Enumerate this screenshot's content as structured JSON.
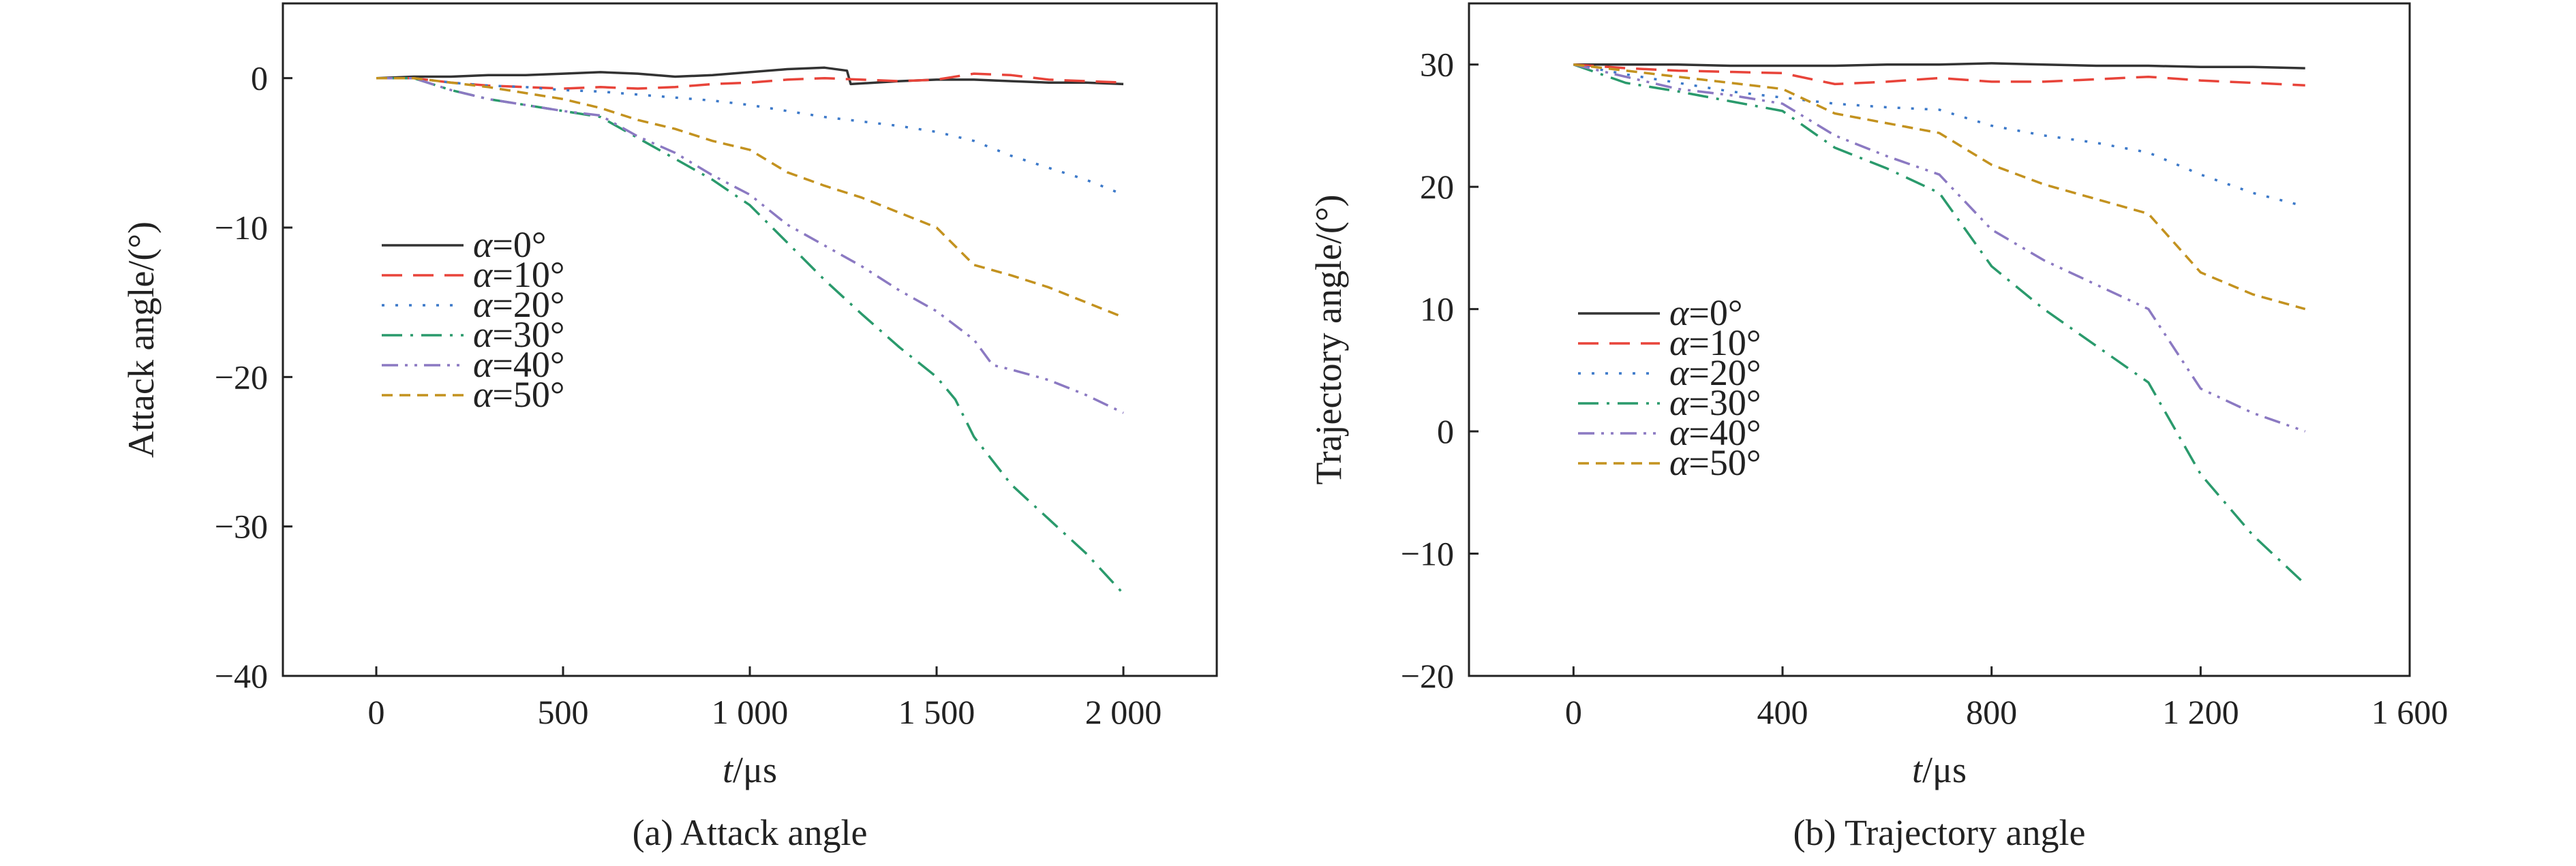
{
  "chart_data": [
    {
      "type": "line",
      "caption": "(a) Attack angle",
      "xlabel_italic": "t",
      "xlabel_unit": "/μs",
      "ylabel": "Attack angle/(°)",
      "xlim": [
        -250,
        2250
      ],
      "ylim": [
        -40,
        5
      ],
      "xticks": [
        0,
        500,
        1000,
        1500,
        2000
      ],
      "xtick_labels": [
        "0",
        "500",
        "1 000",
        "1 500",
        "2 000"
      ],
      "yticks": [
        0,
        -10,
        -20,
        -30,
        -40
      ],
      "ytick_labels": [
        "0",
        "−10",
        "−20",
        "−30",
        "−40"
      ],
      "legend_position": "middle-left",
      "series": [
        {
          "name_italic": "α",
          "name_rest": "=0°",
          "color": "#333333",
          "dash": "none",
          "x": [
            0,
            100,
            200,
            300,
            400,
            500,
            600,
            700,
            800,
            900,
            1000,
            1100,
            1200,
            1260,
            1270,
            1400,
            1500,
            1600,
            1700,
            1800,
            1900,
            2000
          ],
          "y": [
            0,
            0.1,
            0.1,
            0.2,
            0.2,
            0.3,
            0.4,
            0.3,
            0.1,
            0.2,
            0.4,
            0.6,
            0.7,
            0.5,
            -0.4,
            -0.2,
            -0.1,
            -0.1,
            -0.2,
            -0.3,
            -0.3,
            -0.4
          ]
        },
        {
          "name_italic": "α",
          "name_rest": "=10°",
          "color": "#e8443a",
          "dash": "30 16",
          "x": [
            0,
            100,
            200,
            300,
            400,
            500,
            600,
            700,
            800,
            900,
            1000,
            1100,
            1200,
            1300,
            1400,
            1500,
            1600,
            1700,
            1800,
            1900,
            2000
          ],
          "y": [
            0,
            0,
            -0.3,
            -0.5,
            -0.6,
            -0.7,
            -0.6,
            -0.7,
            -0.6,
            -0.4,
            -0.3,
            -0.1,
            0,
            -0.1,
            -0.2,
            -0.1,
            0.3,
            0.2,
            -0.1,
            -0.2,
            -0.3
          ]
        },
        {
          "name_italic": "α",
          "name_rest": "=20°",
          "color": "#3c79c9",
          "dash": "4 16",
          "x": [
            0,
            100,
            200,
            300,
            400,
            500,
            600,
            700,
            800,
            900,
            1000,
            1100,
            1200,
            1300,
            1400,
            1500,
            1600,
            1700,
            1800,
            1900,
            2000
          ],
          "y": [
            0,
            0,
            -0.3,
            -0.5,
            -0.6,
            -0.8,
            -0.9,
            -1.1,
            -1.3,
            -1.5,
            -1.8,
            -2.2,
            -2.6,
            -2.9,
            -3.2,
            -3.6,
            -4.2,
            -5.2,
            -6.0,
            -6.8,
            -7.8
          ]
        },
        {
          "name_italic": "α",
          "name_rest": "=30°",
          "color": "#2a9a6c",
          "dash": "30 12 4 12",
          "x": [
            0,
            100,
            200,
            300,
            400,
            500,
            600,
            700,
            800,
            900,
            1000,
            1100,
            1200,
            1300,
            1400,
            1500,
            1550,
            1600,
            1700,
            1800,
            1900,
            2000
          ],
          "y": [
            0,
            0,
            -0.8,
            -1.4,
            -1.8,
            -2.2,
            -2.6,
            -4.0,
            -5.4,
            -6.8,
            -8.5,
            -11,
            -13.5,
            -15.8,
            -18,
            -20,
            -21.5,
            -24,
            -27.2,
            -29.5,
            -31.8,
            -34.5
          ]
        },
        {
          "name_italic": "α",
          "name_rest": "=40°",
          "color": "#8b79c2",
          "dash": "24 10 4 10 4 10",
          "x": [
            0,
            100,
            200,
            300,
            400,
            500,
            600,
            700,
            800,
            900,
            1000,
            1100,
            1200,
            1300,
            1400,
            1500,
            1600,
            1650,
            1700,
            1800,
            1900,
            2000
          ],
          "y": [
            0,
            0,
            -0.8,
            -1.4,
            -1.8,
            -2.2,
            -2.5,
            -3.9,
            -5,
            -6.5,
            -7.8,
            -9.8,
            -11.2,
            -12.6,
            -14.2,
            -15.6,
            -17.5,
            -19.2,
            -19.5,
            -20.2,
            -21.2,
            -22.4
          ]
        },
        {
          "name_italic": "α",
          "name_rest": "=50°",
          "color": "#c3921f",
          "dash": "16 10",
          "x": [
            0,
            100,
            200,
            300,
            400,
            500,
            600,
            700,
            800,
            900,
            1000,
            1100,
            1200,
            1300,
            1400,
            1500,
            1600,
            1700,
            1800,
            1900,
            2000
          ],
          "y": [
            0,
            0,
            -0.3,
            -0.6,
            -1,
            -1.4,
            -2,
            -2.8,
            -3.4,
            -4.2,
            -4.8,
            -6.3,
            -7.2,
            -8.0,
            -9.0,
            -10.0,
            -12.5,
            -13.2,
            -14.0,
            -15.0,
            -16.0
          ]
        }
      ]
    },
    {
      "type": "line",
      "caption": "(b) Trajectory angle",
      "xlabel_italic": "t",
      "xlabel_unit": "/μs",
      "ylabel": "Trajectory angle/(°)",
      "xlim": [
        -200,
        1600
      ],
      "ylim": [
        -20,
        35
      ],
      "xticks": [
        0,
        400,
        800,
        1200,
        1600
      ],
      "xtick_labels": [
        "0",
        "400",
        "800",
        "1 200",
        "1 600"
      ],
      "yticks": [
        30,
        20,
        10,
        0,
        -10,
        -20
      ],
      "ytick_labels": [
        "30",
        "20",
        "10",
        "0",
        "−10",
        "−20"
      ],
      "legend_position": "middle-left",
      "series": [
        {
          "name_italic": "α",
          "name_rest": "=0°",
          "color": "#333333",
          "dash": "none",
          "x": [
            0,
            100,
            200,
            300,
            400,
            500,
            600,
            700,
            800,
            900,
            1000,
            1100,
            1200,
            1300,
            1400
          ],
          "y": [
            30,
            30,
            30,
            29.9,
            29.9,
            29.9,
            30,
            30,
            30.1,
            30,
            29.9,
            29.9,
            29.8,
            29.8,
            29.7
          ]
        },
        {
          "name_italic": "α",
          "name_rest": "=10°",
          "color": "#e8443a",
          "dash": "30 16",
          "x": [
            0,
            100,
            200,
            300,
            400,
            500,
            600,
            700,
            800,
            900,
            1000,
            1100,
            1200,
            1300,
            1400
          ],
          "y": [
            30,
            29.7,
            29.5,
            29.4,
            29.3,
            28.4,
            28.6,
            28.9,
            28.6,
            28.6,
            28.8,
            29.0,
            28.7,
            28.5,
            28.3
          ]
        },
        {
          "name_italic": "α",
          "name_rest": "=20°",
          "color": "#3c79c9",
          "dash": "4 16",
          "x": [
            0,
            100,
            200,
            300,
            400,
            500,
            600,
            700,
            800,
            900,
            1000,
            1100,
            1200,
            1300,
            1400
          ],
          "y": [
            30,
            29.2,
            28.5,
            27.8,
            27.3,
            26.8,
            26.5,
            26.3,
            25.0,
            24.2,
            23.6,
            22.8,
            21.0,
            19.5,
            18.4
          ]
        },
        {
          "name_italic": "α",
          "name_rest": "=30°",
          "color": "#2a9a6c",
          "dash": "30 12 4 12",
          "x": [
            0,
            100,
            200,
            300,
            400,
            500,
            600,
            700,
            800,
            900,
            1000,
            1100,
            1200,
            1300,
            1400
          ],
          "y": [
            30,
            28.5,
            27.8,
            27,
            26.2,
            23.2,
            21.5,
            19.5,
            13.5,
            10.0,
            7.0,
            4.0,
            -3.5,
            -8.5,
            -12.5
          ]
        },
        {
          "name_italic": "α",
          "name_rest": "=40°",
          "color": "#8b79c2",
          "dash": "24 10 4 10 4 10",
          "x": [
            0,
            100,
            200,
            300,
            400,
            500,
            600,
            700,
            800,
            900,
            1000,
            1100,
            1200,
            1300,
            1400
          ],
          "y": [
            30,
            29,
            28,
            27.5,
            26.8,
            24.2,
            22.5,
            21.0,
            16.5,
            14.0,
            12.0,
            10.0,
            3.5,
            1.5,
            0
          ]
        },
        {
          "name_italic": "α",
          "name_rest": "=50°",
          "color": "#c3921f",
          "dash": "16 10",
          "x": [
            0,
            100,
            200,
            300,
            400,
            500,
            600,
            700,
            800,
            900,
            1000,
            1100,
            1200,
            1300,
            1400
          ],
          "y": [
            30,
            29.5,
            29,
            28.5,
            28.0,
            26.0,
            25.2,
            24.4,
            21.8,
            20.2,
            19.0,
            17.8,
            13.0,
            11.2,
            10.0
          ]
        }
      ]
    }
  ]
}
